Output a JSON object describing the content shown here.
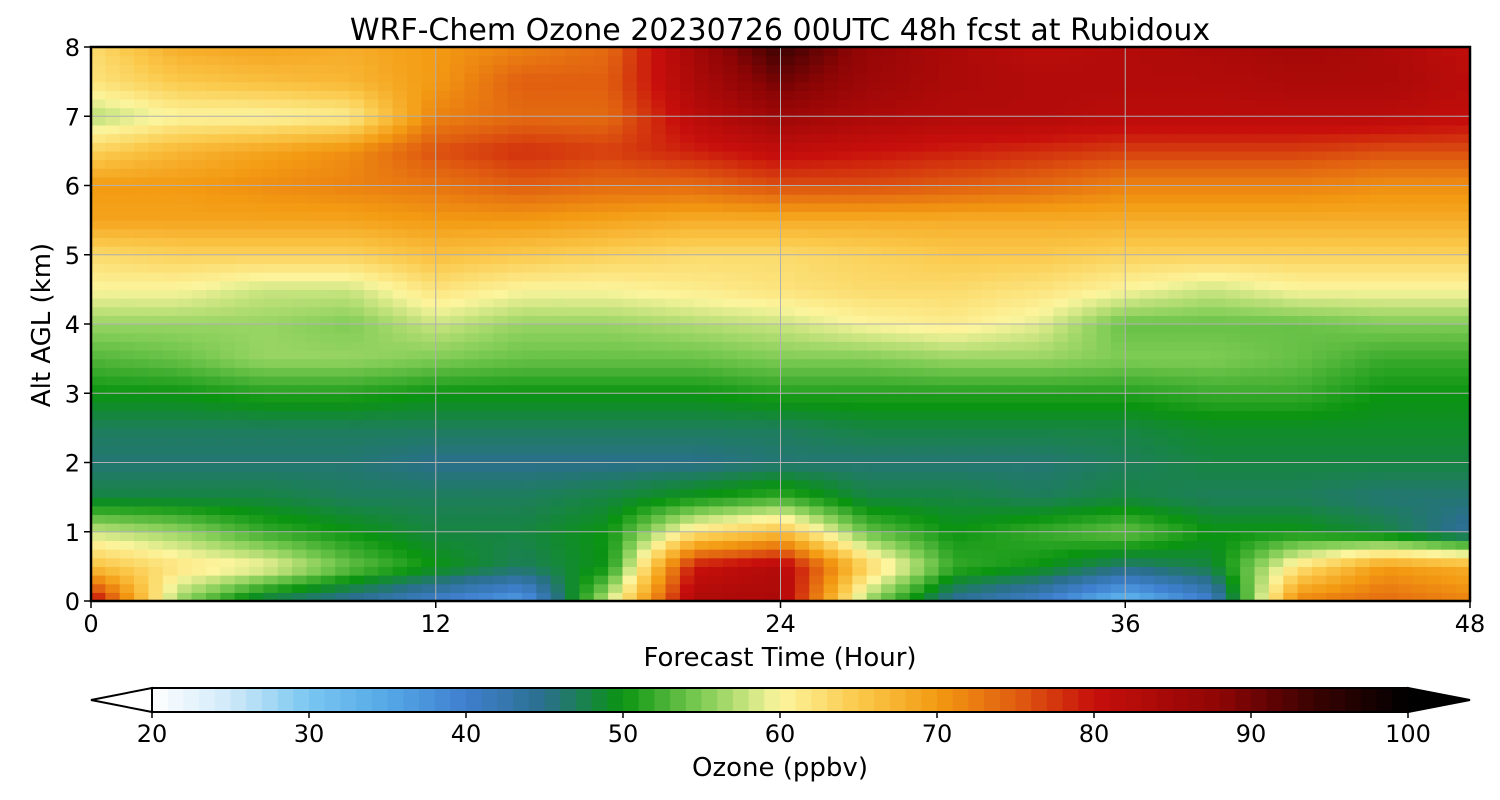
{
  "chart_data": {
    "type": "heatmap",
    "title": "WRF-Chem Ozone  20230726 00UTC 48h fcst at Rubidoux",
    "xlabel": "Forecast Time (Hour)",
    "ylabel": "Alt AGL (km)",
    "xlim": [
      0,
      48
    ],
    "ylim": [
      0,
      8
    ],
    "x_ticks": [
      0,
      12,
      24,
      36,
      48
    ],
    "y_ticks": [
      0,
      1,
      2,
      3,
      4,
      5,
      6,
      7,
      8
    ],
    "grid": true,
    "colorbar": {
      "label": "Ozone  (ppbv)",
      "min": 20,
      "max": 100,
      "ticks": [
        20,
        30,
        40,
        50,
        60,
        70,
        80,
        90,
        100
      ],
      "extend": "both",
      "color_stops": [
        {
          "value": 20,
          "color": "#ffffff"
        },
        {
          "value": 25,
          "color": "#cfe9f9"
        },
        {
          "value": 30,
          "color": "#79c6f1"
        },
        {
          "value": 35,
          "color": "#54a8e6"
        },
        {
          "value": 40,
          "color": "#3f7fcf"
        },
        {
          "value": 45,
          "color": "#2a6f8c"
        },
        {
          "value": 50,
          "color": "#0a9410"
        },
        {
          "value": 55,
          "color": "#7fcc55"
        },
        {
          "value": 60,
          "color": "#fcf59e"
        },
        {
          "value": 65,
          "color": "#fbc94b"
        },
        {
          "value": 70,
          "color": "#f39a12"
        },
        {
          "value": 75,
          "color": "#e05e10"
        },
        {
          "value": 80,
          "color": "#c80f0c"
        },
        {
          "value": 88,
          "color": "#8e0505"
        },
        {
          "value": 94,
          "color": "#3a0202"
        },
        {
          "value": 100,
          "color": "#000000"
        }
      ]
    },
    "x": [
      0,
      3,
      6,
      9,
      12,
      15,
      18,
      21,
      24,
      27,
      30,
      33,
      36,
      39,
      42,
      45,
      48
    ],
    "y": [
      0,
      0.5,
      1,
      1.5,
      2,
      2.5,
      3,
      3.5,
      4,
      4.5,
      5,
      5.5,
      6,
      6.5,
      7,
      7.5,
      8
    ],
    "z": [
      [
        82,
        56,
        47,
        44,
        40,
        36,
        58,
        84,
        84,
        56,
        44,
        40,
        32,
        40,
        72,
        74,
        72
      ],
      [
        66,
        62,
        60,
        54,
        50,
        47,
        50,
        80,
        83,
        64,
        52,
        50,
        46,
        48,
        62,
        70,
        68
      ],
      [
        58,
        56,
        52,
        50,
        48,
        48,
        50,
        62,
        66,
        54,
        50,
        52,
        54,
        50,
        50,
        48,
        44
      ],
      [
        48,
        48,
        48,
        47,
        47,
        47,
        48,
        50,
        52,
        48,
        48,
        47,
        48,
        47,
        47,
        46,
        46
      ],
      [
        46,
        46,
        46,
        46,
        45,
        45,
        45,
        45,
        46,
        46,
        46,
        46,
        47,
        48,
        48,
        48,
        48
      ],
      [
        47,
        47,
        47,
        47,
        47,
        47,
        47,
        47,
        47,
        48,
        48,
        48,
        48,
        49,
        49,
        49,
        49
      ],
      [
        50,
        50,
        51,
        51,
        50,
        50,
        50,
        50,
        51,
        51,
        51,
        51,
        51,
        52,
        52,
        50,
        50
      ],
      [
        53,
        54,
        56,
        56,
        55,
        54,
        54,
        54,
        55,
        55,
        56,
        56,
        55,
        55,
        54,
        52,
        52
      ],
      [
        56,
        56,
        56,
        55,
        58,
        56,
        56,
        57,
        58,
        60,
        61,
        59,
        54,
        54,
        54,
        55,
        55
      ],
      [
        60,
        60,
        58,
        58,
        62,
        60,
        60,
        61,
        62,
        63,
        63,
        62,
        60,
        58,
        60,
        60,
        60
      ],
      [
        63,
        64,
        64,
        64,
        66,
        65,
        64,
        63,
        63,
        64,
        65,
        65,
        64,
        64,
        64,
        64,
        64
      ],
      [
        69,
        69,
        69,
        69,
        70,
        70,
        69,
        68,
        68,
        68,
        68,
        68,
        68,
        68,
        68,
        68,
        68
      ],
      [
        70,
        70,
        71,
        72,
        73,
        75,
        74,
        74,
        76,
        76,
        75,
        74,
        72,
        72,
        72,
        71,
        71
      ],
      [
        64,
        67,
        69,
        71,
        76,
        78,
        77,
        79,
        81,
        80,
        79,
        78,
        77,
        77,
        77,
        76,
        76
      ],
      [
        57,
        60,
        60,
        61,
        72,
        74,
        74,
        82,
        86,
        84,
        83,
        83,
        82,
        82,
        82,
        82,
        81
      ],
      [
        62,
        65,
        66,
        67,
        70,
        75,
        75,
        84,
        90,
        86,
        84,
        83,
        83,
        83,
        84,
        84,
        82
      ],
      [
        63,
        68,
        69,
        68,
        70,
        72,
        74,
        85,
        94,
        87,
        84,
        82,
        83,
        84,
        85,
        84,
        81
      ]
    ]
  }
}
